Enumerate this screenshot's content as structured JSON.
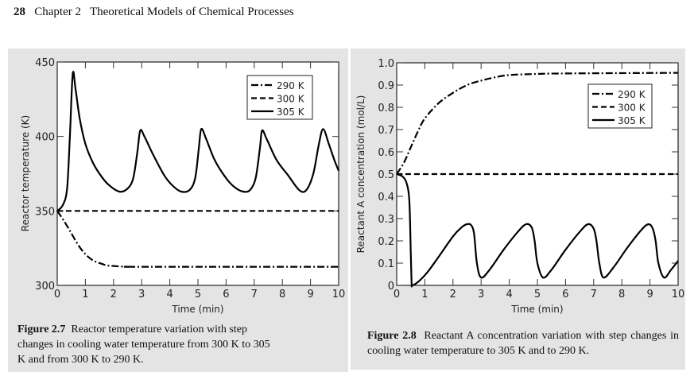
{
  "header": {
    "page_number": "28",
    "chapter": "Chapter 2",
    "title": "Theoretical Models of Chemical Processes"
  },
  "chart_data": [
    {
      "type": "line",
      "figure_label": "Figure 2.7",
      "caption": "Reactor temperature variation with step changes in cooling water temperature from 300 K to 305 K and from 300 K to 290 K.",
      "xlabel": "Time (min)",
      "ylabel": "Reactor temperature (K)",
      "xlim": [
        0,
        10
      ],
      "ylim": [
        300,
        450
      ],
      "xticks": [
        "0",
        "1",
        "2",
        "3",
        "4",
        "5",
        "6",
        "7",
        "8",
        "9",
        "10"
      ],
      "yticks": [
        "300",
        "350",
        "400",
        "450"
      ],
      "ytick_values": [
        300,
        350,
        400,
        450
      ],
      "legend_position": "top-right",
      "series": [
        {
          "name": "290 K",
          "style": "dashdot",
          "x": [
            0,
            0.25,
            0.5,
            0.75,
            1,
            1.25,
            1.5,
            1.75,
            2,
            2.5,
            3,
            10
          ],
          "y": [
            350,
            343,
            335,
            327,
            321,
            317,
            315,
            313.5,
            313,
            312.5,
            312.5,
            312.5
          ]
        },
        {
          "name": "300 K",
          "style": "dashed",
          "x": [
            0,
            10
          ],
          "y": [
            350,
            350
          ]
        },
        {
          "name": "305 K",
          "style": "solid",
          "x": [
            0,
            0.2,
            0.35,
            0.45,
            0.55,
            0.65,
            0.8,
            1,
            1.25,
            1.5,
            1.8,
            2.2,
            2.5,
            2.7,
            2.85,
            2.95,
            3.1,
            3.4,
            3.8,
            4.1,
            4.4,
            4.7,
            4.9,
            5.03,
            5.12,
            5.3,
            5.6,
            6,
            6.3,
            6.6,
            6.85,
            7.05,
            7.2,
            7.28,
            7.45,
            7.8,
            8.2,
            8.6,
            8.85,
            9.1,
            9.3,
            9.45,
            9.65,
            9.85,
            10
          ],
          "y": [
            350,
            354,
            365,
            400,
            442,
            432,
            412,
            395,
            383,
            375,
            368,
            363,
            365,
            372,
            390,
            404,
            400,
            388,
            374,
            367,
            363,
            364,
            372,
            392,
            405,
            398,
            384,
            372,
            366,
            363,
            364,
            372,
            392,
            404,
            398,
            384,
            374,
            364,
            364,
            375,
            395,
            405,
            395,
            384,
            377
          ]
        }
      ]
    },
    {
      "type": "line",
      "figure_label": "Figure 2.8",
      "caption": "Reactant A concentration variation with step changes in cooling water temperature to 305 K and to 290 K.",
      "xlabel": "Time (min)",
      "ylabel": "Reactant A concentration (mol/L)",
      "xlim": [
        0,
        10
      ],
      "ylim": [
        0,
        1.0
      ],
      "xticks": [
        "0",
        "1",
        "2",
        "3",
        "4",
        "5",
        "6",
        "7",
        "8",
        "9",
        "10"
      ],
      "yticks": [
        "0",
        "0.1",
        "0.2",
        "0.3",
        "0.4",
        "0.5",
        "0.6",
        "0.7",
        "0.8",
        "0.9",
        "1.0"
      ],
      "ytick_values": [
        0,
        0.1,
        0.2,
        0.3,
        0.4,
        0.5,
        0.6,
        0.7,
        0.8,
        0.9,
        1.0
      ],
      "legend_position": "top-right",
      "series": [
        {
          "name": "290 K",
          "style": "dashdot",
          "x": [
            0,
            0.25,
            0.5,
            0.75,
            1,
            1.5,
            2,
            2.5,
            3,
            3.5,
            4,
            5,
            6,
            10
          ],
          "y": [
            0.5,
            0.55,
            0.62,
            0.69,
            0.75,
            0.82,
            0.865,
            0.9,
            0.92,
            0.935,
            0.945,
            0.95,
            0.952,
            0.955
          ]
        },
        {
          "name": "300 K",
          "style": "dashed",
          "x": [
            0,
            10
          ],
          "y": [
            0.5,
            0.5
          ]
        },
        {
          "name": "305 K",
          "style": "solid",
          "x": [
            0,
            0.2,
            0.35,
            0.45,
            0.5,
            0.53,
            0.56,
            0.8,
            1.1,
            1.5,
            2,
            2.3,
            2.5,
            2.65,
            2.75,
            2.85,
            3,
            3.3,
            3.8,
            4.3,
            4.6,
            4.8,
            4.9,
            5,
            5.2,
            5.5,
            6,
            6.5,
            6.8,
            7,
            7.1,
            7.2,
            7.35,
            7.7,
            8.2,
            8.7,
            8.95,
            9.1,
            9.2,
            9.3,
            9.5,
            9.75,
            10
          ],
          "y": [
            0.5,
            0.49,
            0.46,
            0.38,
            0.15,
            0.01,
            0.0,
            0.02,
            0.06,
            0.13,
            0.22,
            0.26,
            0.275,
            0.27,
            0.23,
            0.1,
            0.035,
            0.07,
            0.16,
            0.24,
            0.275,
            0.26,
            0.2,
            0.1,
            0.035,
            0.07,
            0.16,
            0.24,
            0.275,
            0.255,
            0.2,
            0.1,
            0.035,
            0.08,
            0.17,
            0.25,
            0.275,
            0.255,
            0.2,
            0.1,
            0.035,
            0.07,
            0.11
          ]
        }
      ]
    }
  ]
}
